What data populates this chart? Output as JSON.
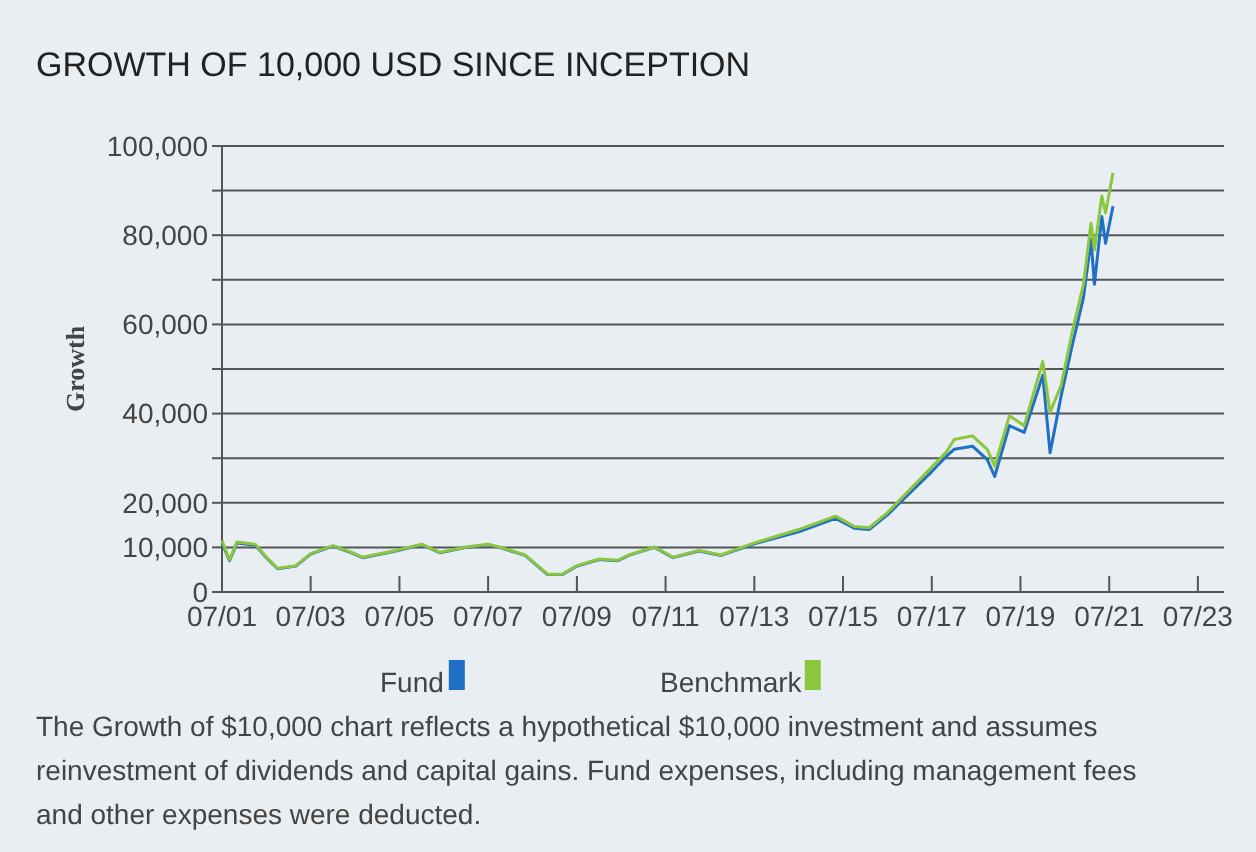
{
  "chart_data": {
    "type": "line",
    "title": "GROWTH OF 10,000 USD SINCE INCEPTION",
    "ylabel": "Growth",
    "annotations": [
      "The Growth of $10,000 chart reflects a hypothetical $10,000 investment and assumes reinvestment of dividends and capital gains. Fund expenses, including management fees and other expenses were deducted."
    ],
    "xlim": [
      "2001-07",
      "2024-02"
    ],
    "xticks": [
      {
        "value": "2001-07",
        "label": "07/01"
      },
      {
        "value": "2003-07",
        "label": "07/03"
      },
      {
        "value": "2005-07",
        "label": "07/05"
      },
      {
        "value": "2007-07",
        "label": "07/07"
      },
      {
        "value": "2009-07",
        "label": "07/09"
      },
      {
        "value": "2011-07",
        "label": "07/11"
      },
      {
        "value": "2013-07",
        "label": "07/13"
      },
      {
        "value": "2015-07",
        "label": "07/15"
      },
      {
        "value": "2017-07",
        "label": "07/17"
      },
      {
        "value": "2019-07",
        "label": "07/19"
      },
      {
        "value": "2021-07",
        "label": "07/21"
      },
      {
        "value": "2023-07",
        "label": "07/23"
      }
    ],
    "ylim": [
      0,
      100000
    ],
    "yticks": [
      {
        "value": 0,
        "label": "0"
      },
      {
        "value": 10000,
        "label": "10,000"
      },
      {
        "value": 20000,
        "label": "20,000"
      },
      {
        "value": 30000,
        "label": null
      },
      {
        "value": 40000,
        "label": "40,000"
      },
      {
        "value": 50000,
        "label": null
      },
      {
        "value": 60000,
        "label": "60,000"
      },
      {
        "value": 70000,
        "label": null
      },
      {
        "value": 80000,
        "label": "80,000"
      },
      {
        "value": 90000,
        "label": null
      },
      {
        "value": 100000,
        "label": "100,000"
      }
    ],
    "grid": "y",
    "legend": "bottom",
    "x": [
      "2001-07",
      "2001-09",
      "2001-11",
      "2002-04",
      "2002-07",
      "2002-10",
      "2003-03",
      "2003-07",
      "2004-01",
      "2004-06",
      "2004-09",
      "2005-06",
      "2006-01",
      "2006-06",
      "2007-01",
      "2007-07",
      "2007-10",
      "2008-05",
      "2008-11",
      "2009-03",
      "2009-07",
      "2010-01",
      "2010-06",
      "2010-09",
      "2011-04",
      "2011-09",
      "2012-04",
      "2012-10",
      "2013-07",
      "2014-07",
      "2015-05",
      "2015-10",
      "2016-02",
      "2016-07",
      "2017-07",
      "2017-11",
      "2018-01",
      "2018-06",
      "2018-10",
      "2018-12",
      "2019-04",
      "2019-08",
      "2020-01",
      "2020-03",
      "2020-06",
      "2020-09",
      "2020-12",
      "2021-02",
      "2021-03",
      "2021-05",
      "2021-06",
      "2021-08"
    ],
    "series": [
      {
        "name": "Fund",
        "color": "#1f6fc4",
        "values": [
          11000,
          7000,
          11000,
          10500,
          7700,
          5200,
          5800,
          8500,
          10300,
          8800,
          7700,
          9200,
          10600,
          8800,
          10000,
          10600,
          10000,
          8200,
          3900,
          3900,
          5800,
          7300,
          7000,
          8200,
          10000,
          7700,
          9200,
          8200,
          10800,
          13500,
          16500,
          14300,
          14000,
          17300,
          27000,
          30500,
          32000,
          32700,
          29700,
          25900,
          37300,
          35800,
          48600,
          31200,
          44100,
          55500,
          66000,
          79000,
          69000,
          84200,
          78200,
          86500
        ]
      },
      {
        "name": "Benchmark",
        "color": "#8cc63f",
        "values": [
          11500,
          7200,
          11200,
          10700,
          7800,
          5300,
          5900,
          8600,
          10400,
          8900,
          7800,
          9300,
          10700,
          8900,
          10100,
          10700,
          10100,
          8300,
          4000,
          4000,
          5900,
          7400,
          7100,
          8300,
          10100,
          7800,
          9300,
          8300,
          11000,
          14000,
          17000,
          14700,
          14400,
          17800,
          28000,
          31500,
          34200,
          35000,
          32000,
          28200,
          39500,
          37300,
          51700,
          40300,
          46400,
          58500,
          69000,
          82700,
          76700,
          88800,
          85000,
          94000
        ]
      }
    ]
  }
}
